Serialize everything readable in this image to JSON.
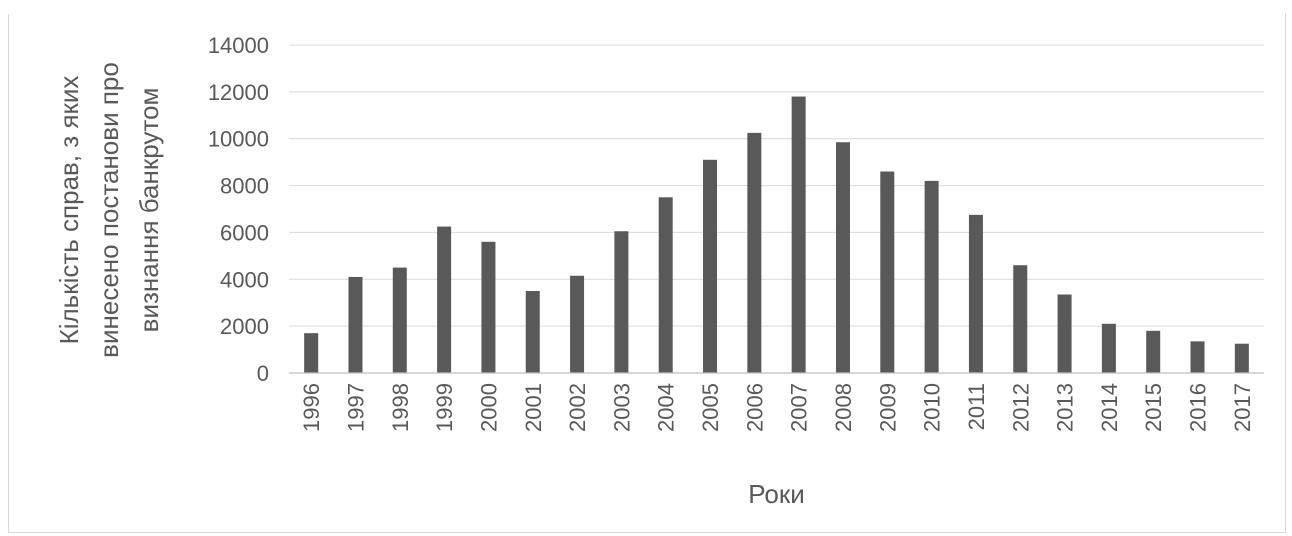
{
  "chart_data": {
    "type": "bar",
    "title": "",
    "xlabel": "Роки",
    "ylabel_lines": [
      "Кількість справ, з яких",
      "винесено постанови про",
      "визнання банкрутом"
    ],
    "ylim": [
      0,
      14000
    ],
    "yticks": [
      0,
      2000,
      4000,
      6000,
      8000,
      10000,
      12000,
      14000
    ],
    "grid": true,
    "legend": "none",
    "categories": [
      "1996",
      "1997",
      "1998",
      "1999",
      "2000",
      "2001",
      "2002",
      "2003",
      "2004",
      "2005",
      "2006",
      "2007",
      "2008",
      "2009",
      "2010",
      "2011",
      "2012",
      "2013",
      "2014",
      "2015",
      "2016",
      "2017"
    ],
    "values": [
      1700,
      4100,
      4500,
      6250,
      5600,
      3500,
      4150,
      6050,
      7500,
      9100,
      10250,
      11800,
      9850,
      8600,
      8200,
      6750,
      4600,
      3350,
      2100,
      1800,
      1350,
      1250
    ],
    "colors": {
      "bar": "#595959",
      "grid": "#d9d9d9",
      "text": "#595959"
    }
  }
}
